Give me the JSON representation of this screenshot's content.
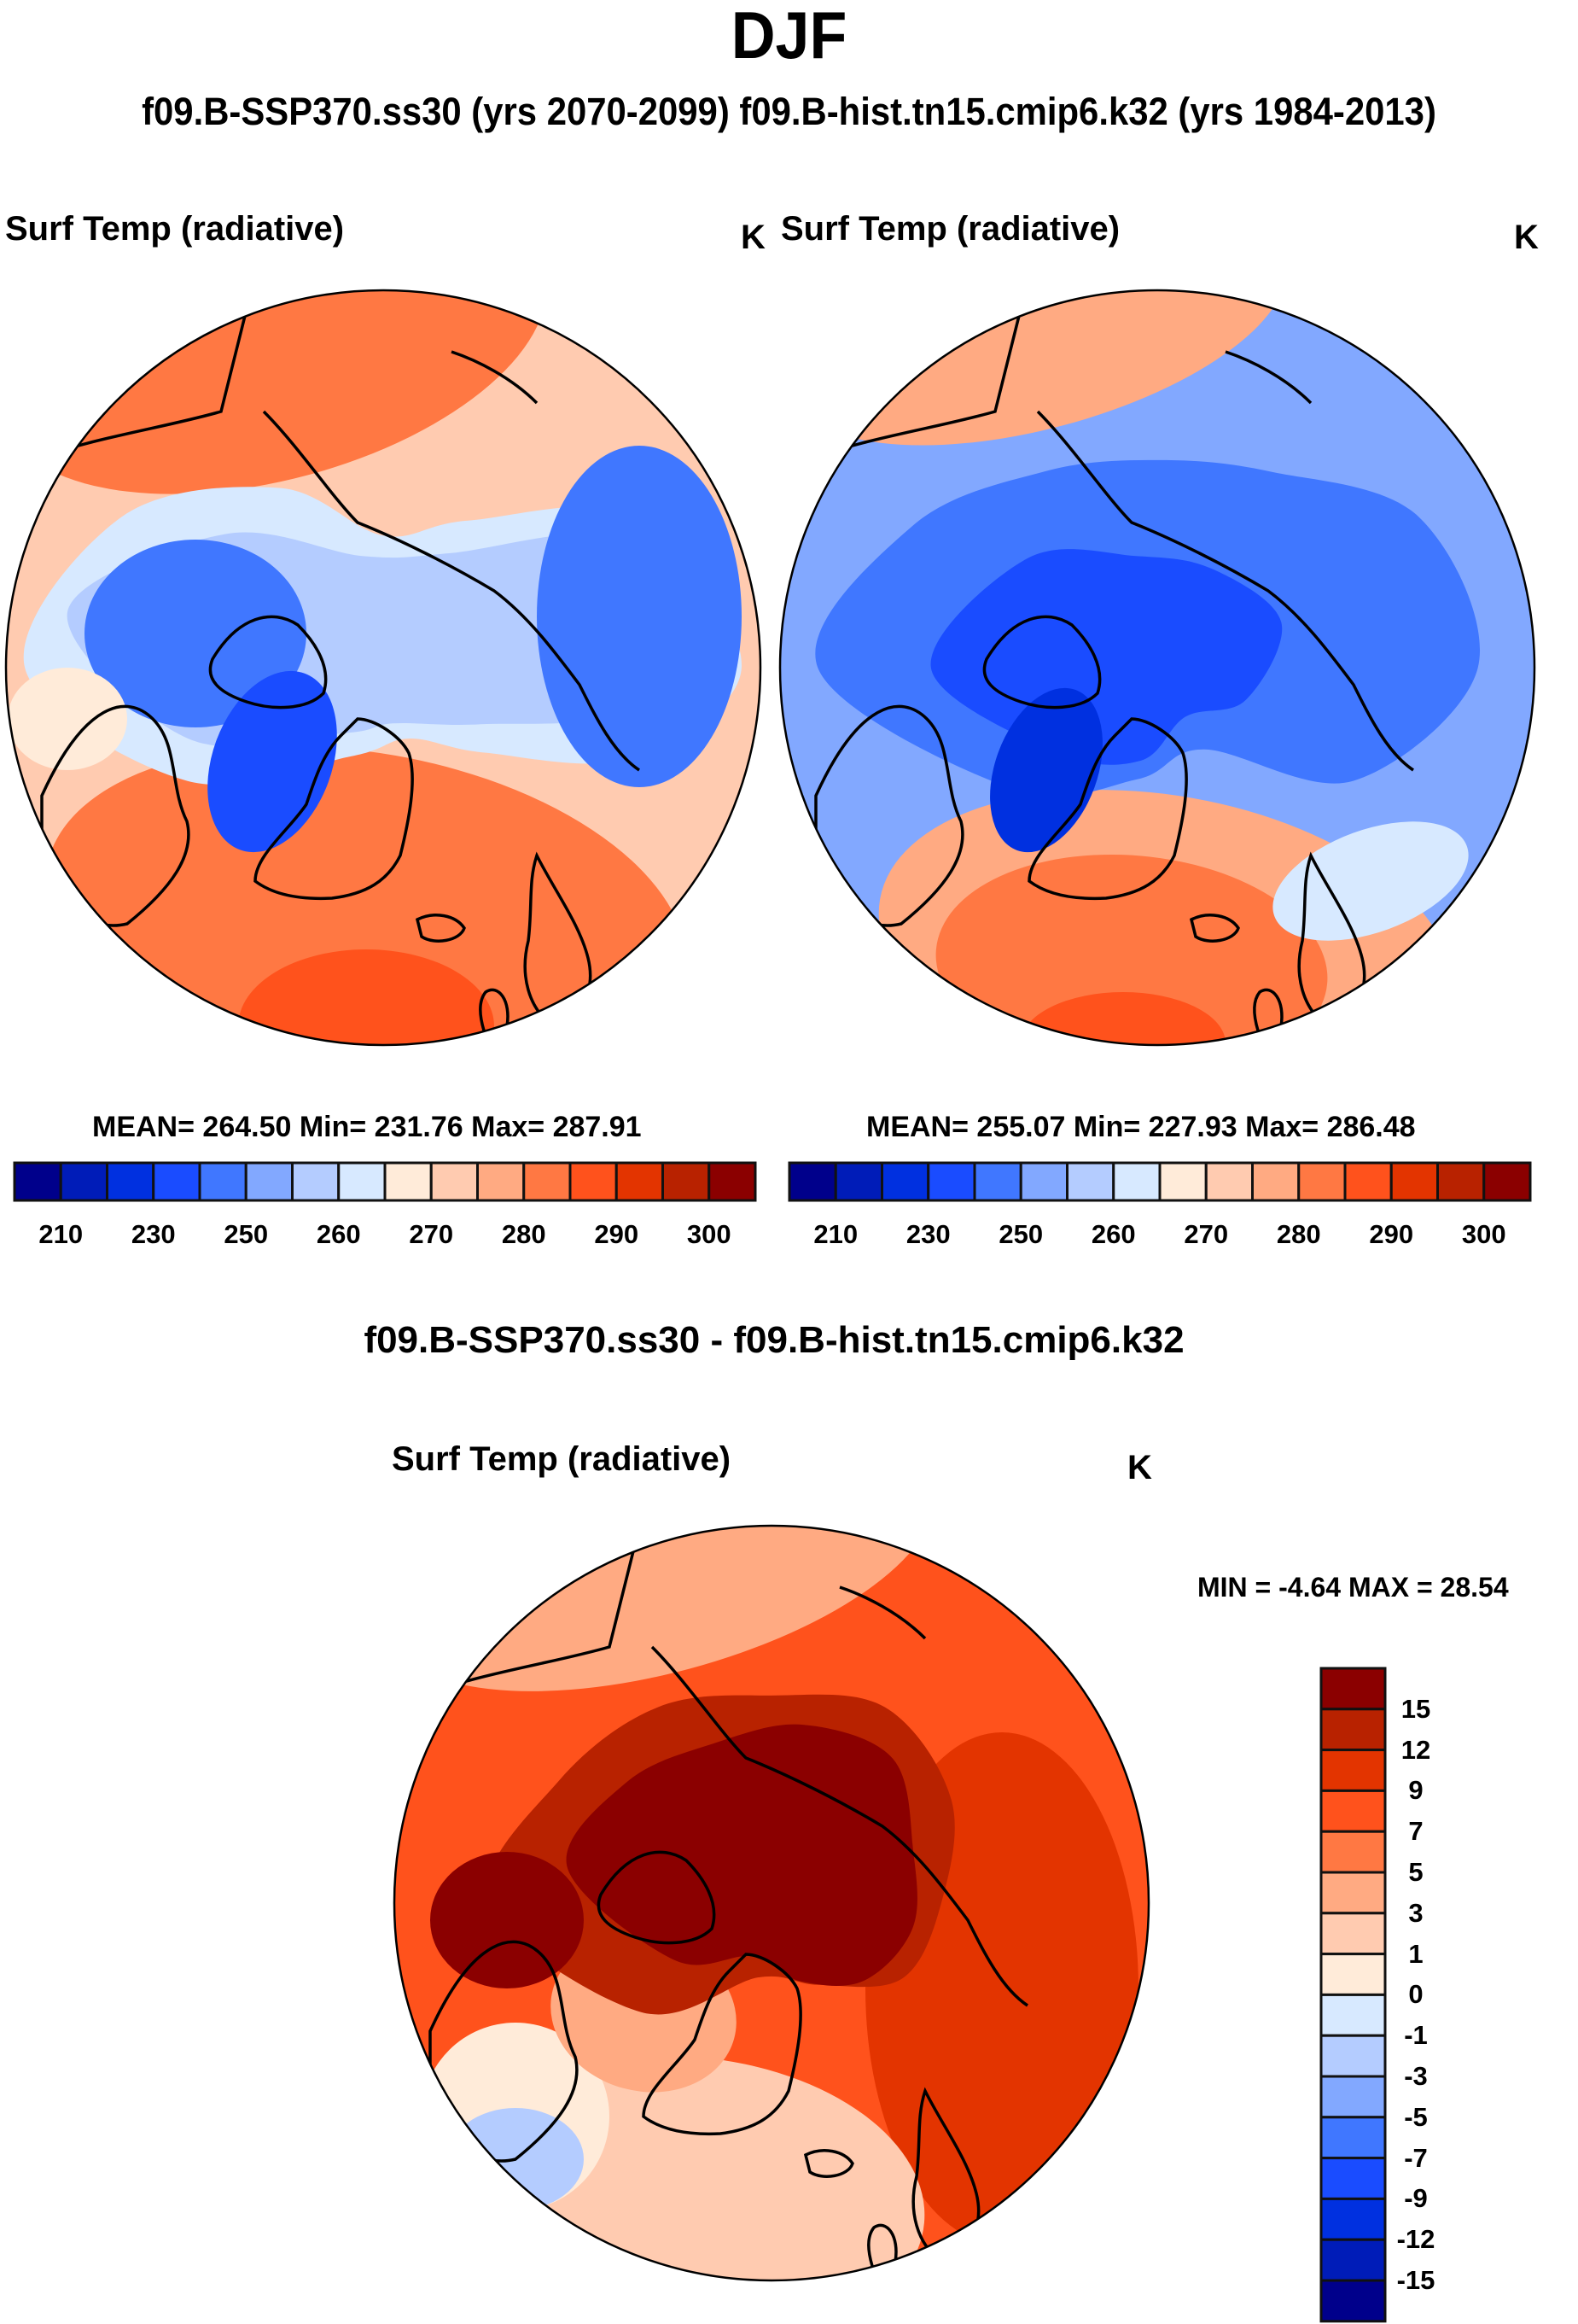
{
  "figure": {
    "title": "DJF",
    "subtitle": "f09.B-SSP370.ss30 (yrs 2070-2099)  f09.B-hist.tn15.cmip6.k32 (yrs 1984-2013)"
  },
  "chart_data": [
    {
      "type": "heatmap",
      "projection": "north-polar-stereographic",
      "title": "Surf Temp (radiative)",
      "units": "K",
      "case": "f09.B-SSP370.ss30 (yrs 2070-2099)",
      "stats_label": "MEAN= 264.50  Min= 231.76  Max= 287.91",
      "mean": 264.5,
      "min": 231.76,
      "max": 287.91,
      "colorbar": {
        "orientation": "horizontal",
        "levels": [
          210,
          220,
          230,
          240,
          250,
          255,
          260,
          265,
          270,
          275,
          280,
          285,
          290,
          295,
          300
        ],
        "tick_labels": [
          "210",
          "230",
          "250",
          "260",
          "270",
          "280",
          "290",
          "300"
        ],
        "colors": [
          "#00008b",
          "#001cb8",
          "#0030e0",
          "#1a4cff",
          "#4077ff",
          "#82a8ff",
          "#b4ccff",
          "#d7e9ff",
          "#ffebd9",
          "#ffcbb0",
          "#ffaa82",
          "#ff7843",
          "#ff521c",
          "#e33400",
          "#b82200",
          "#8b0000"
        ]
      }
    },
    {
      "type": "heatmap",
      "projection": "north-polar-stereographic",
      "title": "Surf Temp (radiative)",
      "units": "K",
      "case": "f09.B-hist.tn15.cmip6.k32 (yrs 1984-2013)",
      "stats_label": "MEAN= 255.07  Min= 227.93  Max= 286.48",
      "mean": 255.07,
      "min": 227.93,
      "max": 286.48,
      "colorbar": {
        "orientation": "horizontal",
        "levels": [
          210,
          220,
          230,
          240,
          250,
          255,
          260,
          265,
          270,
          275,
          280,
          285,
          290,
          295,
          300
        ],
        "tick_labels": [
          "210",
          "230",
          "250",
          "260",
          "270",
          "280",
          "290",
          "300"
        ],
        "colors": [
          "#00008b",
          "#001cb8",
          "#0030e0",
          "#1a4cff",
          "#4077ff",
          "#82a8ff",
          "#b4ccff",
          "#d7e9ff",
          "#ffebd9",
          "#ffcbb0",
          "#ffaa82",
          "#ff7843",
          "#ff521c",
          "#e33400",
          "#b82200",
          "#8b0000"
        ]
      }
    },
    {
      "type": "heatmap",
      "projection": "north-polar-stereographic",
      "section_title": "f09.B-SSP370.ss30 - f09.B-hist.tn15.cmip6.k32",
      "title": "Surf Temp (radiative)",
      "units": "K",
      "stats_label": "MIN =  -4.64 MAX =  28.54",
      "min": -4.64,
      "max": 28.54,
      "colorbar": {
        "orientation": "vertical",
        "levels": [
          -15,
          -12,
          -9,
          -7,
          -5,
          -3,
          -1,
          0,
          1,
          3,
          5,
          7,
          9,
          12,
          15
        ],
        "tick_labels": [
          "15",
          "12",
          "9",
          "7",
          "5",
          "3",
          "1",
          "0",
          "-1",
          "-3",
          "-5",
          "-7",
          "-9",
          "-12",
          "-15"
        ],
        "colors_top_to_bottom": [
          "#8b0000",
          "#b82200",
          "#e33400",
          "#ff521c",
          "#ff7843",
          "#ffaa82",
          "#ffcbb0",
          "#ffebd9",
          "#d7e9ff",
          "#b4ccff",
          "#82a8ff",
          "#4077ff",
          "#1a4cff",
          "#0030e0",
          "#001cb8",
          "#00008b"
        ]
      }
    }
  ]
}
